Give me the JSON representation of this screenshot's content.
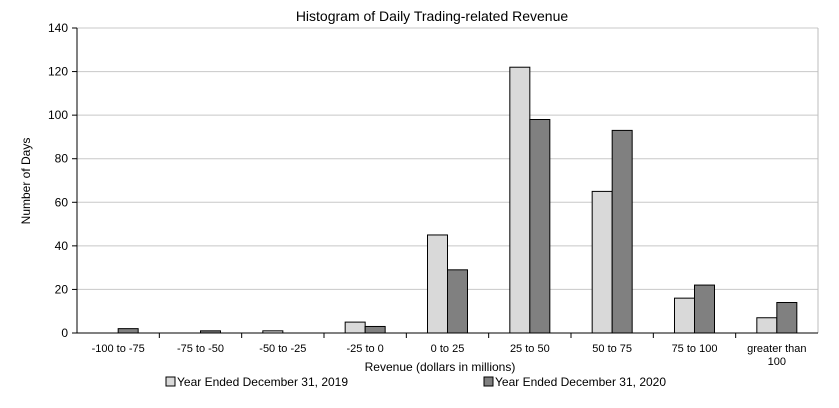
{
  "chart_data": {
    "type": "bar",
    "title": "Histogram of Daily Trading-related Revenue",
    "xlabel": "Revenue (dollars in millions)",
    "ylabel": "Number of Days",
    "ylim": [
      0,
      140
    ],
    "yticks": [
      0,
      20,
      40,
      60,
      80,
      100,
      120,
      140
    ],
    "grid": true,
    "legend_position": "bottom",
    "categories": [
      [
        "-100 to -75"
      ],
      [
        "-75 to -50"
      ],
      [
        "-50 to -25"
      ],
      [
        "-25 to 0"
      ],
      [
        "0 to 25"
      ],
      [
        "25 to 50"
      ],
      [
        "50 to 75"
      ],
      [
        "75 to 100"
      ],
      [
        "greater than",
        "100"
      ]
    ],
    "series": [
      {
        "name": "Year Ended December 31, 2019",
        "color": "#d9d9d9",
        "values": [
          0,
          0,
          1,
          5,
          45,
          122,
          65,
          16,
          7
        ]
      },
      {
        "name": "Year Ended December 31, 2020",
        "color": "#808080",
        "values": [
          2,
          1,
          0,
          3,
          29,
          98,
          93,
          22,
          14
        ]
      }
    ]
  }
}
